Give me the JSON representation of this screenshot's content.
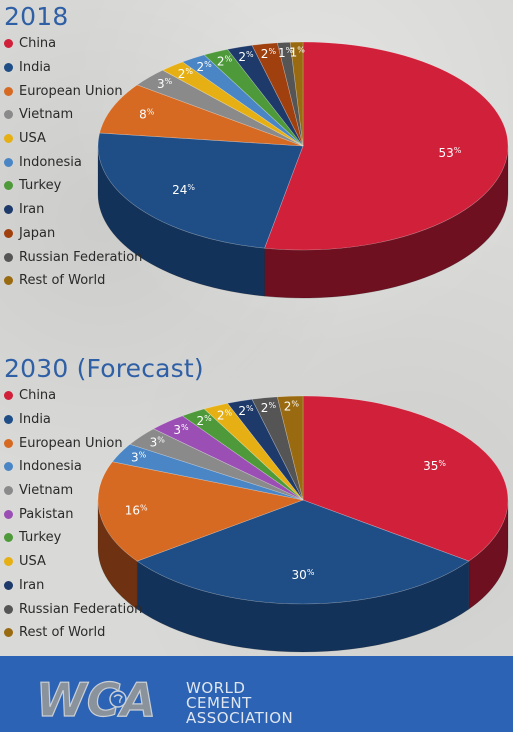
{
  "chart_data": [
    {
      "type": "pie",
      "title": "2018",
      "legend_position": "left",
      "slices": [
        {
          "label": "China",
          "value": 53,
          "display": "53",
          "color": "#d0203a",
          "side": "#6e1020"
        },
        {
          "label": "India",
          "value": 24,
          "display": "24",
          "color": "#1f4e86",
          "side": "#13325a"
        },
        {
          "label": "European Union",
          "value": 8,
          "display": "8",
          "color": "#d66a23",
          "side": "#6e3212"
        },
        {
          "label": "Vietnam",
          "value": 3,
          "display": "3",
          "color": "#8a8a8a",
          "side": "#484848"
        },
        {
          "label": "USA",
          "value": 2,
          "display": "2",
          "color": "#e6b015",
          "side": "#8a6a0a"
        },
        {
          "label": "Indonesia",
          "value": 2,
          "display": "2",
          "color": "#4a86c5",
          "side": "#2a4f7a"
        },
        {
          "label": "Turkey",
          "value": 2,
          "display": "2",
          "color": "#4e9a3a",
          "side": "#2b5720"
        },
        {
          "label": "Iran",
          "value": 2,
          "display": "2",
          "color": "#1e3a6a",
          "side": "#111f3a"
        },
        {
          "label": "Japan",
          "value": 2,
          "display": "2",
          "color": "#a0400f",
          "side": "#5a230a"
        },
        {
          "label": "Russian Federation",
          "value": 1,
          "display": "1",
          "color": "#555555",
          "side": "#2c2c2c"
        },
        {
          "label": "Rest of World",
          "value": 1,
          "display": "1",
          "color": "#9a6a10",
          "side": "#5a3e08"
        }
      ]
    },
    {
      "type": "pie",
      "title": "2030 (Forecast)",
      "legend_position": "left",
      "slices": [
        {
          "label": "China",
          "value": 35,
          "display": "35",
          "color": "#d0203a",
          "side": "#6e1020"
        },
        {
          "label": "India",
          "value": 30,
          "display": "30",
          "color": "#1f4e86",
          "side": "#13325a"
        },
        {
          "label": "European Union",
          "value": 16,
          "display": "16",
          "color": "#d66a23",
          "side": "#6e3212"
        },
        {
          "label": "Indonesia",
          "value": 3,
          "display": "3",
          "color": "#4a86c5",
          "side": "#2a4f7a"
        },
        {
          "label": "Vietnam",
          "value": 3,
          "display": "3",
          "color": "#8a8a8a",
          "side": "#484848"
        },
        {
          "label": "Pakistan",
          "value": 3,
          "display": "3",
          "color": "#9b4fb5",
          "side": "#552a66"
        },
        {
          "label": "Turkey",
          "value": 2,
          "display": "2",
          "color": "#4e9a3a",
          "side": "#2b5720"
        },
        {
          "label": "USA",
          "value": 2,
          "display": "2",
          "color": "#e6b015",
          "side": "#8a6a0a"
        },
        {
          "label": "Iran",
          "value": 2,
          "display": "2",
          "color": "#1e3a6a",
          "side": "#111f3a"
        },
        {
          "label": "Russian Federation",
          "value": 2,
          "display": "2",
          "color": "#555555",
          "side": "#2c2c2c"
        },
        {
          "label": "Rest of World",
          "value": 2,
          "display": "2",
          "color": "#9a6a10",
          "side": "#5a3e08"
        }
      ]
    }
  ],
  "percent_sign": "%",
  "footer": {
    "logo_letters": "WCA",
    "name_lines": [
      "WORLD",
      "CEMENT",
      "ASSOCIATION"
    ]
  },
  "colors": {
    "title": "#2f5fa5",
    "footer_bg": "#2d63b4"
  }
}
